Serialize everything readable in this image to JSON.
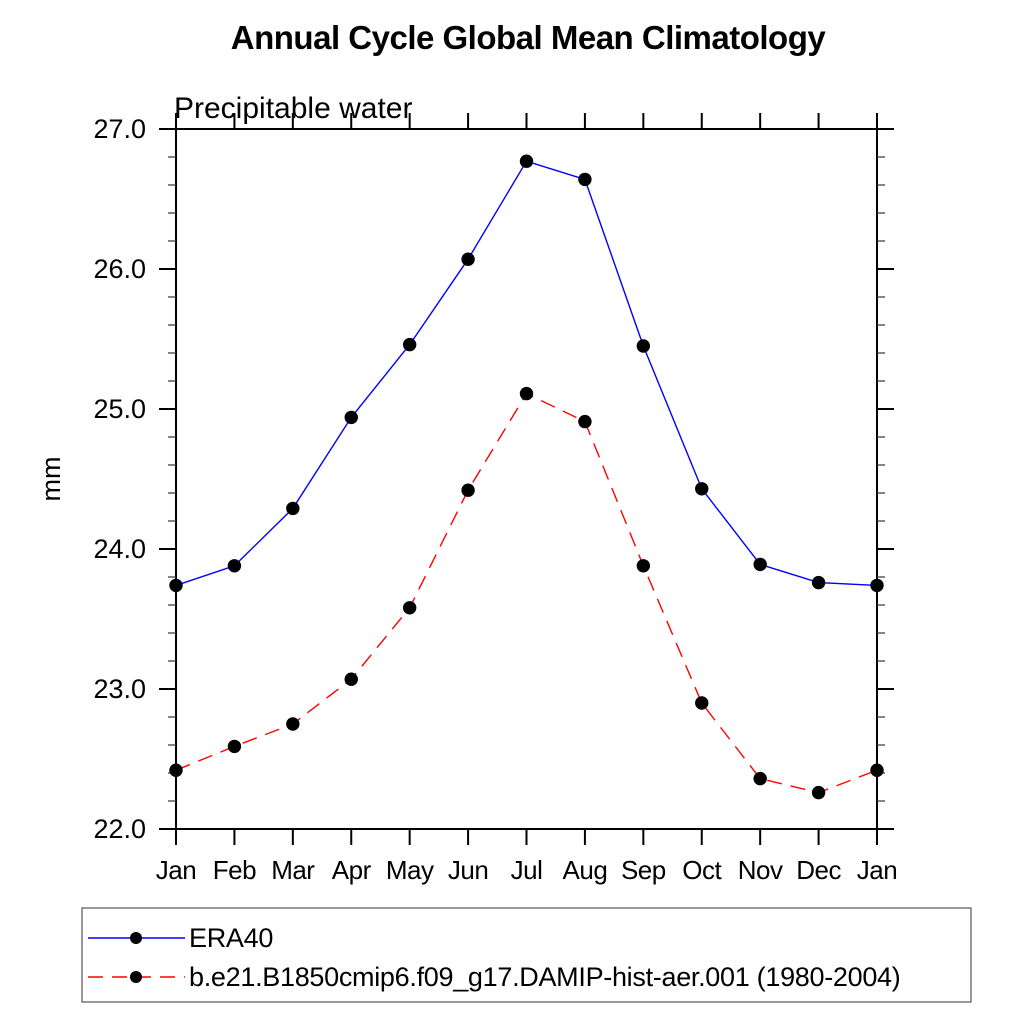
{
  "chart_data": {
    "type": "line",
    "title": "Annual Cycle Global Mean Climatology",
    "subtitle": "Precipitable water",
    "ylabel": "mm",
    "xlabel": "",
    "categories": [
      "Jan",
      "Feb",
      "Mar",
      "Apr",
      "May",
      "Jun",
      "Jul",
      "Aug",
      "Sep",
      "Oct",
      "Nov",
      "Dec",
      "Jan"
    ],
    "series": [
      {
        "name": "ERA40",
        "color": "#0000ff",
        "line_style": "solid",
        "marker": "filled-circle",
        "marker_color": "#000000",
        "values": [
          23.74,
          23.88,
          24.29,
          24.94,
          25.46,
          26.07,
          26.77,
          26.64,
          25.45,
          24.43,
          23.89,
          23.76,
          23.74
        ]
      },
      {
        "name": "b.e21.B1850cmip6.f09_g17.DAMIP-hist-aer.001 (1980-2004)",
        "color": "#ff0000",
        "line_style": "dashed",
        "marker": "filled-circle",
        "marker_color": "#000000",
        "values": [
          22.42,
          22.59,
          22.75,
          23.07,
          23.58,
          24.42,
          25.11,
          24.91,
          23.88,
          22.9,
          22.36,
          22.26,
          22.42
        ]
      }
    ],
    "ylim": [
      22.0,
      27.0
    ],
    "y_major_tick_values": [
      22.0,
      23.0,
      24.0,
      25.0,
      26.0,
      27.0
    ],
    "y_major_tick_labels": [
      "22.0",
      "23.0",
      "24.0",
      "25.0",
      "26.0",
      "27.0"
    ],
    "y_minor_tick_step": 0.2,
    "grid": false,
    "frame": "box-with-outward-ticks",
    "axis_color": "#000000",
    "background_color": "#ffffff",
    "legend_position": "bottom-left-box"
  }
}
